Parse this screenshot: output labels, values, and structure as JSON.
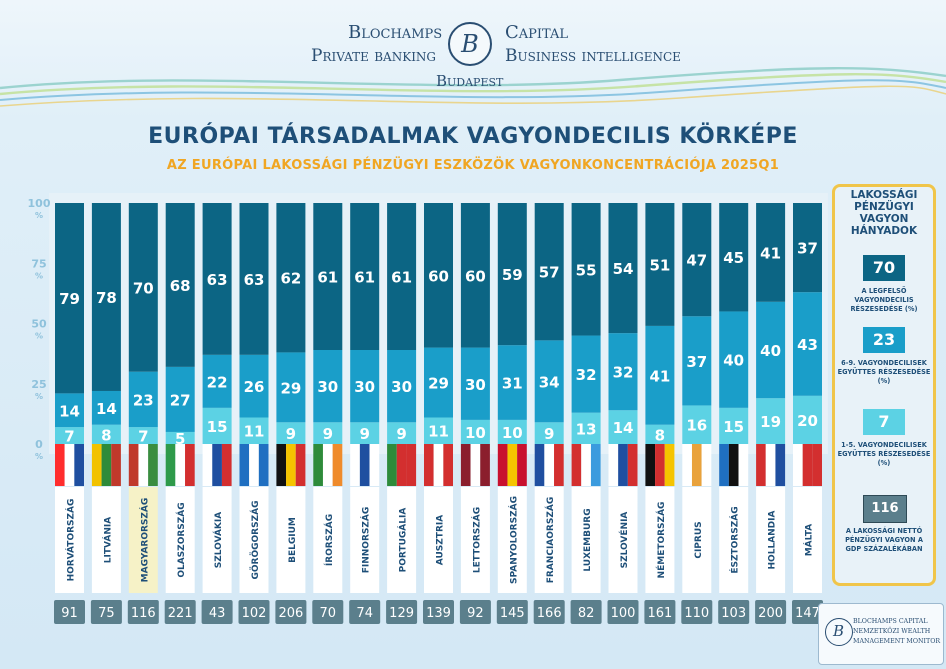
{
  "header": {
    "brand_left_1": "Blochamps",
    "brand_right_1": "Capital",
    "brand_left_2": "Private banking",
    "brand_right_2": "Business intelligence",
    "city": "Budapest",
    "monogram": "B"
  },
  "colors": {
    "top": "#0c6584",
    "mid": "#1a9ec9",
    "bottom": "#5cd2e4",
    "gdp_box": "#5b7f8c",
    "title": "#1e4f78",
    "subtitle": "#f0a623"
  },
  "legend": {
    "title": "LAKOSSÁGI PÉNZÜGYI VAGYON HÁNYADOK",
    "items": [
      {
        "value": "70",
        "label": "A LEGFELSŐ VAGYONDECILIS RÉSZESEDÉSE (%)",
        "color": "#0c6584"
      },
      {
        "value": "23",
        "label": "6-9. VAGYONDECILISEK EGYÜTTES RÉSZESEDÉSE (%)",
        "color": "#1a9ec9"
      },
      {
        "value": "7",
        "label": "1-5. VAGYONDECILISEK EGYÜTTES RÉSZESEDÉSE (%)",
        "color": "#5cd2e4"
      },
      {
        "value": "116",
        "label": "A LAKOSSÁGI NETTÓ PÉNZÜGYI VAGYON A GDP SZÁZALÉKÁBAN",
        "color": "#5b7f8c"
      }
    ]
  },
  "footer_logo": {
    "line1": "BLOCHAMPS CAPITAL",
    "line2": "NEMZETKÖZI WEALTH",
    "line3": "MANAGEMENT MONITOR"
  },
  "chart_data": {
    "type": "bar",
    "stacked": true,
    "title": "EURÓPAI TÁRSADALMAK VAGYONDECILIS KÖRKÉPE",
    "subtitle": "AZ EURÓPAI LAKOSSÁGI PÉNZÜGYI ESZKÖZÖK VAGYONKONCENTRÁCIÓJA 2025Q1",
    "y_ticks": [
      {
        "value": 100,
        "label": "100",
        "unit": "%"
      },
      {
        "value": 75,
        "label": "75",
        "unit": "%"
      },
      {
        "value": 50,
        "label": "50",
        "unit": "%"
      },
      {
        "value": 25,
        "label": "25",
        "unit": "%"
      },
      {
        "value": 0,
        "label": "0",
        "unit": "%"
      }
    ],
    "ylim": [
      0,
      100
    ],
    "categories": [
      "HORVÁTORSZÁG",
      "LITVÁNIA",
      "MAGYARORSZÁG",
      "OLASZORSZÁG",
      "SZLOVÁKIA",
      "GÖRÖGORSZÁG",
      "BELGIUM",
      "ÍRORSZÁG",
      "FINNORSZÁG",
      "PORTUGÁLIA",
      "AUSZTRIA",
      "LETTORSZÁG",
      "SPANYOLORSZÁG",
      "FRANCIAORSZÁG",
      "LUXEMBURG",
      "SZLOVÉNIA",
      "NÉMETORSZÁG",
      "CIPRUS",
      "ÉSZTORSZÁG",
      "HOLLANDIA",
      "MÁLTA"
    ],
    "highlight": "MAGYARORSZÁG",
    "series": [
      {
        "name": "1-5. vagyondecilisek",
        "values": [
          7,
          8,
          7,
          5,
          15,
          11,
          9,
          9,
          9,
          9,
          11,
          10,
          10,
          9,
          13,
          14,
          8,
          16,
          15,
          19,
          20
        ]
      },
      {
        "name": "6-9. vagyondecilisek",
        "values": [
          14,
          14,
          23,
          27,
          22,
          26,
          29,
          30,
          30,
          30,
          29,
          30,
          31,
          34,
          32,
          32,
          41,
          37,
          40,
          40,
          43
        ]
      },
      {
        "name": "Legfelső vagyondecilis",
        "values": [
          79,
          78,
          70,
          68,
          63,
          63,
          62,
          61,
          61,
          61,
          60,
          60,
          59,
          57,
          55,
          54,
          51,
          47,
          45,
          41,
          37
        ]
      }
    ],
    "gdp_percent": [
      91,
      75,
      116,
      221,
      43,
      102,
      206,
      70,
      74,
      129,
      139,
      92,
      145,
      166,
      82,
      100,
      161,
      110,
      103,
      200,
      147
    ]
  }
}
